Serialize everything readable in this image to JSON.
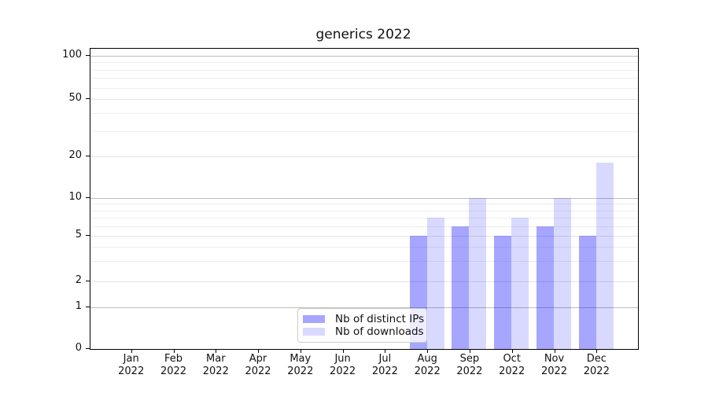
{
  "chart_data": {
    "type": "bar",
    "title": "generics 2022",
    "categories": [
      "Jan 2022",
      "Feb 2022",
      "Mar 2022",
      "Apr 2022",
      "May 2022",
      "Jun 2022",
      "Jul 2022",
      "Aug 2022",
      "Sep 2022",
      "Oct 2022",
      "Nov 2022",
      "Dec 2022"
    ],
    "series": [
      {
        "name": "Nb of distinct IPs",
        "color": "rgba(0,0,255,0.35)",
        "values": [
          0,
          0,
          0,
          0,
          0,
          0,
          0,
          5,
          6,
          5,
          6,
          5
        ]
      },
      {
        "name": "Nb of downloads",
        "color": "rgba(0,0,255,0.15)",
        "values": [
          0,
          0,
          0,
          0,
          0,
          0,
          0,
          7,
          10,
          7,
          10,
          18
        ]
      }
    ],
    "xlabel": "",
    "ylabel": "",
    "ylim": [
      0,
      100
    ],
    "yscale": "log above 1, linear 0-1 (symlog)",
    "y_ticks": [
      0,
      1,
      2,
      5,
      10,
      20,
      50,
      100
    ],
    "y_major_gridlines": [
      1,
      10,
      100
    ],
    "y_minor_gridlines": [
      3,
      4,
      6,
      7,
      8,
      9,
      30,
      40,
      60,
      70,
      80,
      90
    ],
    "grid": "on",
    "legend_position": "lower center"
  },
  "legend": {
    "items": [
      {
        "label": "Nb of distinct IPs",
        "swatch_color": "rgba(0,0,255,0.35)"
      },
      {
        "label": "Nb of downloads",
        "swatch_color": "rgba(0,0,255,0.15)"
      }
    ]
  }
}
